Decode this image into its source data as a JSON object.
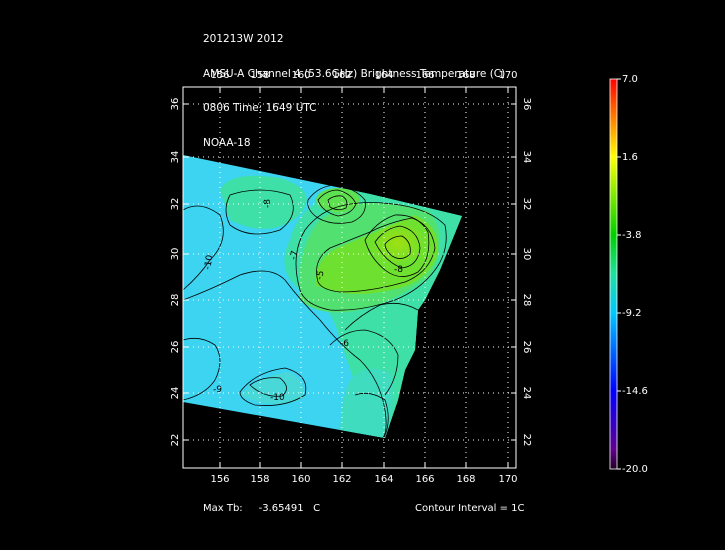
{
  "title": {
    "line1": "201213W 2012",
    "line2": "AMSU-A Channel 4 (53.6GHz) Brightness Temperature (C)",
    "line3": "0806 Time: 1649 UTC",
    "line4": "NOAA-18"
  },
  "map": {
    "lon_ticks": [
      "156",
      "158",
      "160",
      "162",
      "164",
      "166",
      "168",
      "170"
    ],
    "lat_ticks": [
      "22",
      "24",
      "26",
      "28",
      "30",
      "32",
      "34",
      "36"
    ],
    "lon_range": [
      154,
      171
    ],
    "lat_range": [
      21,
      37
    ],
    "grid": "dotted",
    "contour_labels": [
      "-8",
      "-7",
      "-5",
      "-6",
      "-8",
      "-10",
      "-10",
      "-9"
    ],
    "colors": {
      "cold": "#3ad0f0",
      "cool": "#3fe0b0",
      "mid": "#3ee08a",
      "warm": "#70e020",
      "hot": "#a2e810",
      "contour": "#000000",
      "frame": "#ffffff"
    }
  },
  "colorbar": {
    "labels": [
      "7.0",
      "1.6",
      "-3.8",
      "-9.2",
      "-14.6",
      "-20.0"
    ],
    "colors": [
      "#ff0000",
      "#ff8000",
      "#ffff00",
      "#00e000",
      "#00d0ff",
      "#0000ff",
      "#400080",
      "#200020"
    ]
  },
  "footer": {
    "max_label": "Max Tb:",
    "max_value": "-3.65491",
    "max_unit": "C",
    "contour_interval": "Contour Interval = 1C"
  }
}
